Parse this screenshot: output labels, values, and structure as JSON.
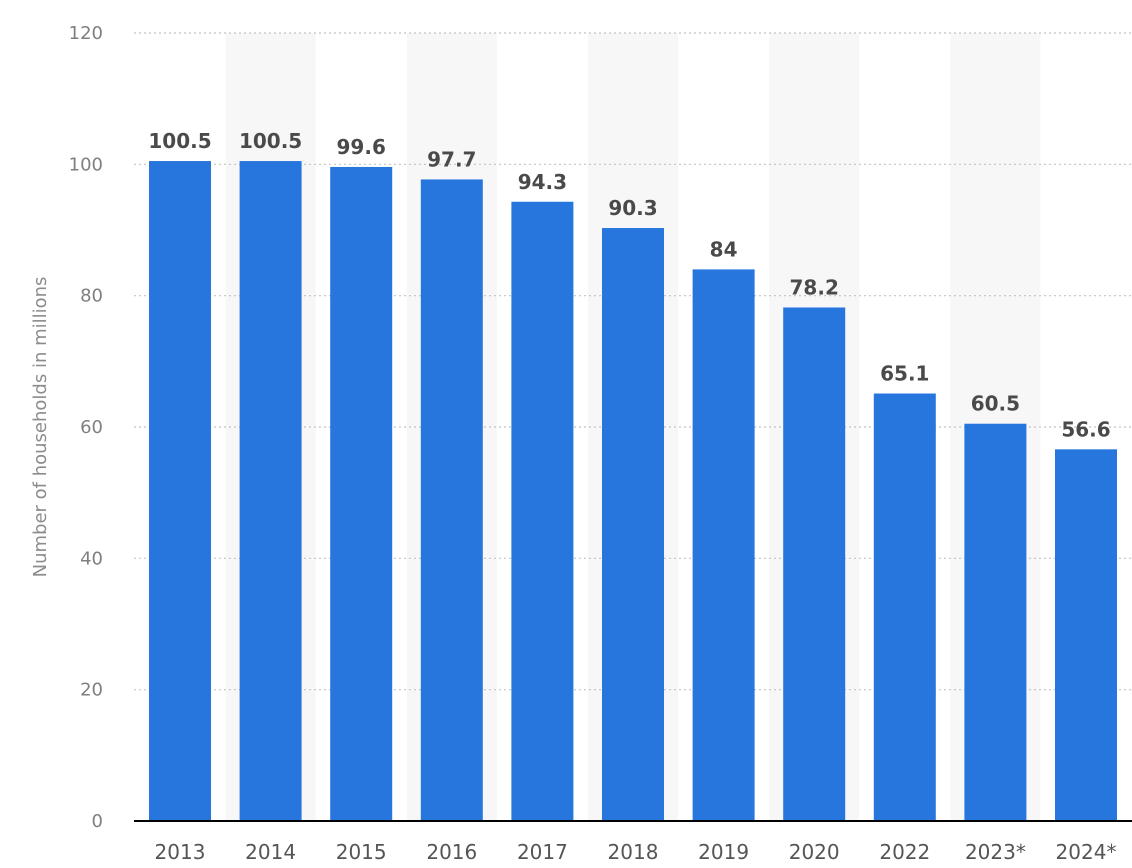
{
  "chart_data": {
    "type": "bar",
    "title": "",
    "xlabel": "",
    "ylabel": "Number of households in millions",
    "categories": [
      "2013",
      "2014",
      "2015",
      "2016",
      "2017",
      "2018",
      "2019",
      "2020",
      "2022",
      "2023*",
      "2024*"
    ],
    "values": [
      100.5,
      100.5,
      99.6,
      97.7,
      94.3,
      90.3,
      84,
      78.2,
      65.1,
      60.5,
      56.6
    ],
    "value_labels": [
      "100.5",
      "100.5",
      "99.6",
      "97.7",
      "94.3",
      "90.3",
      "84",
      "78.2",
      "65.1",
      "60.5",
      "56.6"
    ],
    "ylim": [
      0,
      120
    ],
    "yticks": [
      0,
      20,
      40,
      60,
      80,
      100,
      120
    ],
    "ytick_labels": [
      "0",
      "20",
      "40",
      "60",
      "80",
      "100",
      "120"
    ],
    "grid": true,
    "grid_style": "dotted",
    "alternating_column_shading": true,
    "legend": "none",
    "colors": {
      "bar": "#2776dd",
      "band": "#f7f7f7",
      "grid": "#c2c2c2",
      "axis": "#000000",
      "data_label": "#4a4a4a",
      "tick_label": "#7f7f7f"
    }
  }
}
